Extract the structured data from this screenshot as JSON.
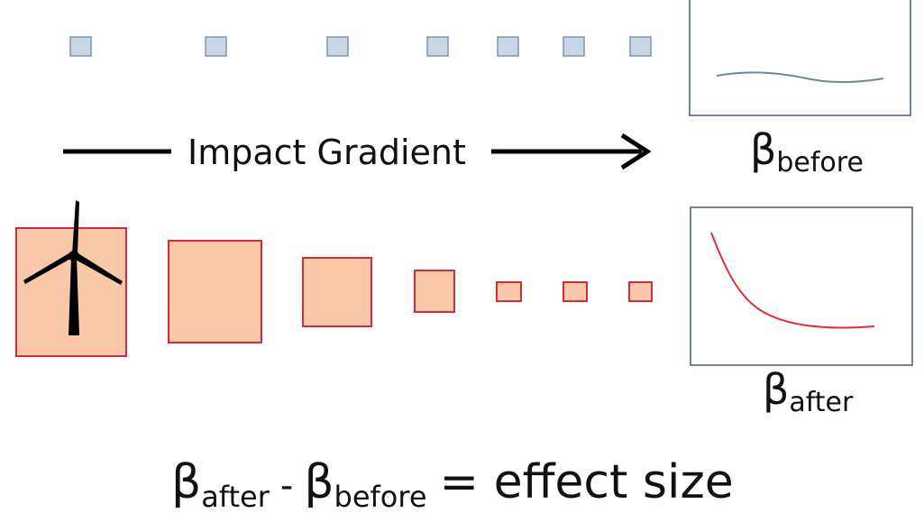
{
  "arrow_label": "Impact Gradient",
  "before_label": {
    "symbol": "β",
    "subscript": "before"
  },
  "after_label": {
    "symbol": "β",
    "subscript": "after"
  },
  "equation": {
    "term1": {
      "symbol": "β",
      "subscript": "after"
    },
    "operator": "-",
    "term2": {
      "symbol": "β",
      "subscript": "before"
    },
    "rest": "= effect size"
  }
}
